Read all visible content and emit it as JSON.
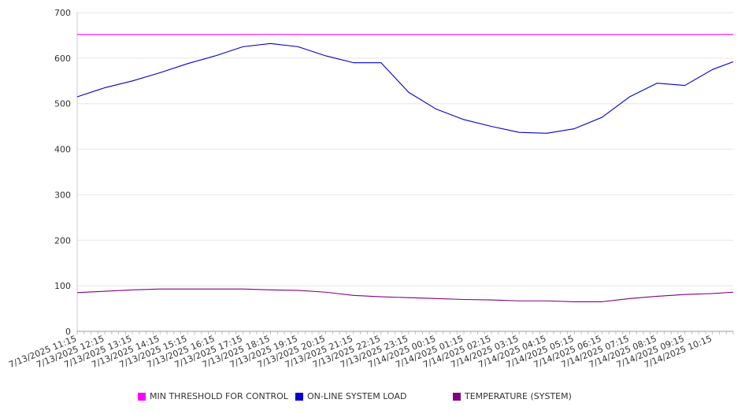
{
  "chart_data": {
    "type": "line",
    "title": "",
    "xlabel": "",
    "ylabel": "",
    "ylim": [
      0,
      700
    ],
    "yticks": [
      0,
      100,
      200,
      300,
      400,
      500,
      600,
      700
    ],
    "grid": true,
    "legend_position": "bottom",
    "x_tick_labels": [
      "7/13/2025 11:15",
      "7/13/2025 12:15",
      "7/13/2025 13:15",
      "7/13/2025 14:15",
      "7/13/2025 15:15",
      "7/13/2025 16:15",
      "7/13/2025 17:15",
      "7/13/2025 18:15",
      "7/13/2025 19:15",
      "7/13/2025 20:15",
      "7/13/2025 21:15",
      "7/13/2025 22:15",
      "7/13/2025 23:15",
      "7/14/2025 00:15",
      "7/14/2025 01:15",
      "7/14/2025 02:15",
      "7/14/2025 03:15",
      "7/14/2025 04:15",
      "7/14/2025 05:15",
      "7/14/2025 06:15",
      "7/14/2025 07:15",
      "7/14/2025 08:15",
      "7/14/2025 09:15",
      "7/14/2025 10:15"
    ],
    "x_hours": [
      0,
      1,
      2,
      3,
      4,
      5,
      6,
      7,
      8,
      9,
      10,
      11,
      12,
      13,
      14,
      15,
      16,
      17,
      18,
      19,
      20,
      21,
      22,
      23,
      23.75
    ],
    "series": [
      {
        "name": "MIN THRESHOLD FOR CONTROL",
        "color": "#ff00ff",
        "values": [
          652,
          652,
          652,
          652,
          652,
          652,
          652,
          652,
          652,
          652,
          652,
          652,
          652,
          652,
          652,
          652,
          652,
          652,
          652,
          652,
          652,
          652,
          652,
          652,
          652
        ]
      },
      {
        "name": "ON-LINE SYSTEM LOAD",
        "color": "#0000cc",
        "values": [
          515,
          535,
          550,
          568,
          588,
          605,
          625,
          632,
          625,
          605,
          590,
          590,
          525,
          488,
          465,
          450,
          437,
          435,
          445,
          470,
          515,
          545,
          540,
          575,
          592
        ]
      },
      {
        "name": "TEMPERATURE (SYSTEM)",
        "color": "#800080",
        "values": [
          85,
          88,
          91,
          93,
          93,
          93,
          93,
          91,
          90,
          86,
          79,
          76,
          74,
          72,
          70,
          69,
          67,
          67,
          65,
          65,
          72,
          77,
          81,
          83,
          86
        ]
      }
    ]
  }
}
